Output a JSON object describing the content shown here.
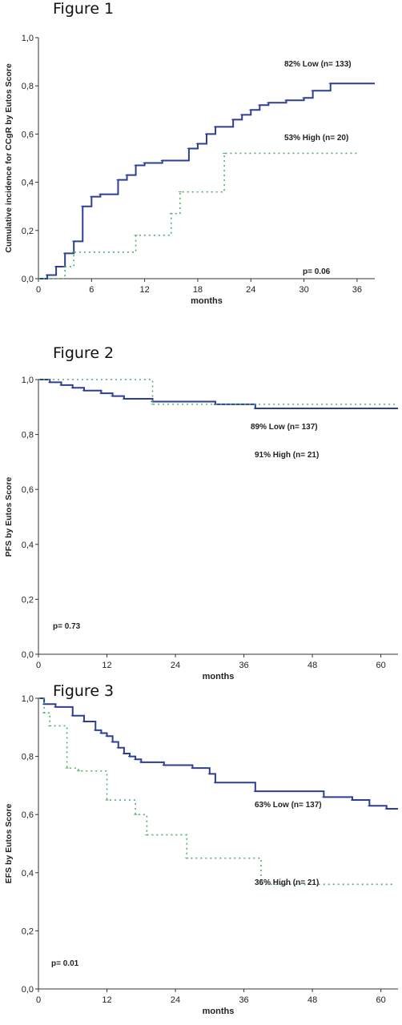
{
  "figures": [
    {
      "title": "Figure 1"
    },
    {
      "title": "Figure 2"
    },
    {
      "title": "Figure 3"
    }
  ],
  "colors": {
    "low": "#2e3f93",
    "high": "#4fb06a",
    "axis": "#333333"
  },
  "chart_data": [
    {
      "type": "line",
      "step": true,
      "ylabel": "Cumulative incidence for CCgR by Eutos Score",
      "xlabel": "months",
      "xlim": [
        0,
        38
      ],
      "ylim": [
        0,
        1.0
      ],
      "xticks": [
        0,
        6,
        12,
        18,
        24,
        30,
        36
      ],
      "yticks": [
        "0,0",
        "0,2",
        "0,4",
        "0,6",
        "0,8",
        "1,0"
      ],
      "yticks_values": [
        0,
        0.2,
        0.4,
        0.6,
        0.8,
        1.0
      ],
      "series": [
        {
          "name": "82% Low (n= 133)",
          "style": "solid",
          "x": [
            0,
            1,
            2,
            3,
            4,
            5,
            6,
            7,
            9,
            10,
            11,
            12,
            14,
            16,
            17,
            18,
            19,
            20,
            21,
            22,
            23,
            24,
            25,
            26,
            27,
            28,
            30,
            31,
            33,
            38
          ],
          "y": [
            0,
            0.015,
            0.05,
            0.105,
            0.155,
            0.3,
            0.34,
            0.35,
            0.41,
            0.43,
            0.47,
            0.48,
            0.49,
            0.49,
            0.54,
            0.56,
            0.6,
            0.63,
            0.63,
            0.66,
            0.68,
            0.7,
            0.72,
            0.73,
            0.73,
            0.74,
            0.75,
            0.78,
            0.81,
            0.81
          ]
        },
        {
          "name": "53% High (n= 20)",
          "style": "dotted",
          "x": [
            0,
            3,
            4,
            11,
            15,
            16,
            21,
            36
          ],
          "y": [
            0,
            0.05,
            0.11,
            0.18,
            0.27,
            0.36,
            0.52,
            0.52
          ]
        }
      ],
      "annotations": [
        "82% Low (n= 133)",
        "53% High (n= 20)",
        "p= 0.06"
      ]
    },
    {
      "type": "line",
      "step": true,
      "ylabel": "PFS by Eutos Score",
      "xlabel": "months",
      "xlim": [
        0,
        63
      ],
      "ylim": [
        0,
        1.0
      ],
      "xticks": [
        0,
        12,
        24,
        36,
        48,
        60
      ],
      "yticks": [
        "0,0",
        "0,2",
        "0,4",
        "0,6",
        "0,8",
        "1,0"
      ],
      "yticks_values": [
        0,
        0.2,
        0.4,
        0.6,
        0.8,
        1.0
      ],
      "series": [
        {
          "name": "89% Low (n= 137)",
          "style": "solid",
          "x": [
            0,
            2,
            4,
            6,
            8,
            11,
            13,
            15,
            20,
            31,
            38,
            63
          ],
          "y": [
            1.0,
            0.99,
            0.98,
            0.97,
            0.96,
            0.95,
            0.94,
            0.93,
            0.92,
            0.91,
            0.895,
            0.895
          ]
        },
        {
          "name": "91% High (n= 21)",
          "style": "dotted",
          "x": [
            0,
            20,
            63
          ],
          "y": [
            1.0,
            0.91,
            0.91
          ]
        }
      ],
      "annotations": [
        "89% Low (n= 137)",
        "91% High (n= 21)",
        "p= 0.73"
      ]
    },
    {
      "type": "line",
      "step": true,
      "ylabel": "EFS by Eutos Score",
      "xlabel": "months",
      "xlim": [
        0,
        63
      ],
      "ylim": [
        0,
        1.0
      ],
      "xticks": [
        0,
        12,
        24,
        36,
        48,
        60
      ],
      "yticks": [
        "0,0",
        "0,2",
        "0,4",
        "0,6",
        "0,8",
        "1,0"
      ],
      "yticks_values": [
        0,
        0.2,
        0.4,
        0.6,
        0.8,
        1.0
      ],
      "series": [
        {
          "name": "63% Low (n= 137)",
          "style": "solid",
          "x": [
            0,
            1,
            3,
            6,
            8,
            10,
            11,
            12,
            13,
            14,
            15,
            16,
            17,
            18,
            20,
            22,
            24,
            27,
            30,
            31,
            38,
            50,
            55,
            58,
            61,
            63
          ],
          "y": [
            1.0,
            0.98,
            0.97,
            0.94,
            0.92,
            0.89,
            0.88,
            0.87,
            0.85,
            0.83,
            0.81,
            0.8,
            0.79,
            0.78,
            0.78,
            0.77,
            0.77,
            0.76,
            0.74,
            0.71,
            0.68,
            0.66,
            0.65,
            0.63,
            0.62,
            0.62
          ]
        },
        {
          "name": "36% High (n= 21)",
          "style": "dotted",
          "x": [
            0,
            1,
            2,
            5,
            7,
            12,
            17,
            19,
            26,
            39,
            62
          ],
          "y": [
            1.0,
            0.95,
            0.905,
            0.76,
            0.75,
            0.65,
            0.6,
            0.53,
            0.45,
            0.36,
            0.36
          ]
        }
      ],
      "annotations": [
        "63% Low (n= 137)",
        "36% High (n= 21)",
        "p= 0.01"
      ]
    }
  ]
}
